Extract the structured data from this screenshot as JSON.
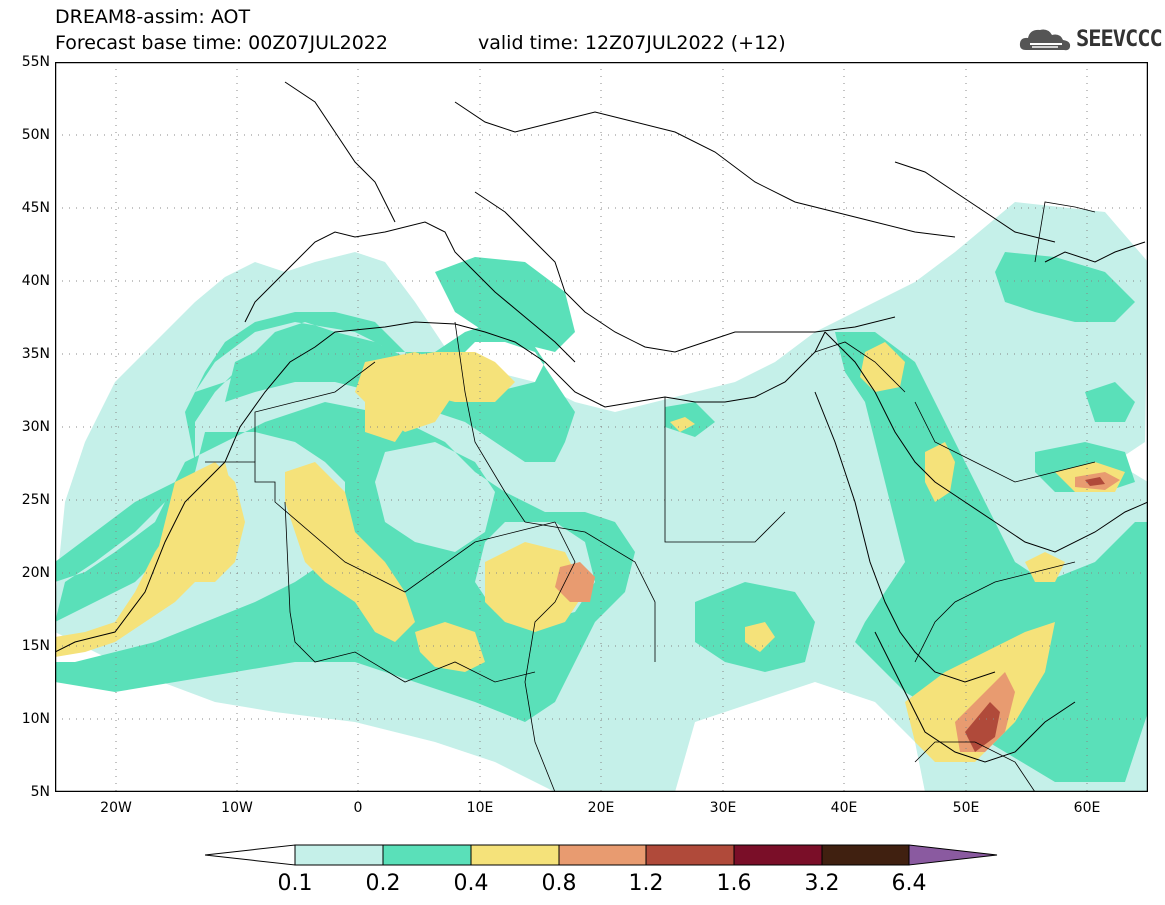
{
  "header": {
    "title": "DREAM8-assim: AOT",
    "base_time": "Forecast base time: 00Z07JUL2022",
    "valid_time": "valid time: 12Z07JUL2022 (+12)"
  },
  "logo": {
    "text": "SEEVCCC",
    "icon": "cloud-logo-icon"
  },
  "map": {
    "variable": "AOT",
    "lat_labels": [
      "55N",
      "50N",
      "45N",
      "40N",
      "35N",
      "30N",
      "25N",
      "20N",
      "15N",
      "10N",
      "5N"
    ],
    "lon_labels": [
      "20W",
      "10W",
      "0",
      "10E",
      "20E",
      "30E",
      "40E",
      "50E",
      "60E"
    ],
    "lat_range": [
      5,
      55
    ],
    "lon_range": [
      -25,
      65
    ],
    "grid": "dotted"
  },
  "colorbar": {
    "labels": [
      "0.1",
      "0.2",
      "0.4",
      "0.8",
      "1.2",
      "1.6",
      "3.2",
      "6.4"
    ],
    "colors": [
      "#c5f0e9",
      "#5ae0b9",
      "#f5e27a",
      "#e89b70",
      "#b04a3a",
      "#7a0e28",
      "#402010"
    ],
    "under_color": "#ffffff",
    "over_color": "#8a5aa0"
  }
}
